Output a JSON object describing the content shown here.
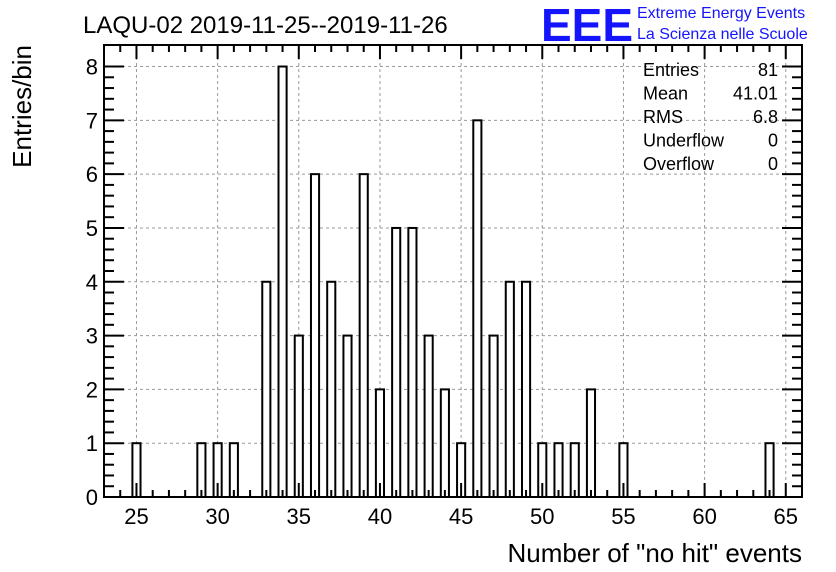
{
  "logo": {
    "mark": "EEE",
    "line1": "Extreme Energy Events",
    "line2": "La Scienza nelle Scuole",
    "color": "#1414ff"
  },
  "chart_data": {
    "type": "bar",
    "title": "LAQU-02 2019-11-25--2019-11-26",
    "xlabel": "Number of \"no hit\" events",
    "ylabel": "Entries/bin",
    "xlim": [
      23,
      66
    ],
    "ylim": [
      0,
      8.4
    ],
    "bin_width": 0.5,
    "x_ticks": [
      25,
      30,
      35,
      40,
      45,
      50,
      55,
      60,
      65
    ],
    "y_ticks": [
      0,
      1,
      2,
      3,
      4,
      5,
      6,
      7,
      8
    ],
    "grid": true,
    "bins": [
      {
        "x": 25,
        "value": 1
      },
      {
        "x": 29,
        "value": 1
      },
      {
        "x": 30,
        "value": 1
      },
      {
        "x": 31,
        "value": 1
      },
      {
        "x": 33,
        "value": 4
      },
      {
        "x": 34,
        "value": 8
      },
      {
        "x": 35,
        "value": 3
      },
      {
        "x": 36,
        "value": 6
      },
      {
        "x": 37,
        "value": 4
      },
      {
        "x": 38,
        "value": 3
      },
      {
        "x": 39,
        "value": 6
      },
      {
        "x": 40,
        "value": 2
      },
      {
        "x": 41,
        "value": 5
      },
      {
        "x": 42,
        "value": 5
      },
      {
        "x": 43,
        "value": 3
      },
      {
        "x": 44,
        "value": 2
      },
      {
        "x": 45,
        "value": 1
      },
      {
        "x": 46,
        "value": 7
      },
      {
        "x": 47,
        "value": 3
      },
      {
        "x": 48,
        "value": 4
      },
      {
        "x": 49,
        "value": 4
      },
      {
        "x": 50,
        "value": 1
      },
      {
        "x": 51,
        "value": 1
      },
      {
        "x": 52,
        "value": 1
      },
      {
        "x": 53,
        "value": 2
      },
      {
        "x": 55,
        "value": 1
      },
      {
        "x": 64,
        "value": 1
      }
    ],
    "stats": [
      {
        "label": "Entries",
        "value": "81"
      },
      {
        "label": "Mean",
        "value": "41.01"
      },
      {
        "label": "RMS",
        "value": "6.8"
      },
      {
        "label": "Underflow",
        "value": "0"
      },
      {
        "label": "Overflow",
        "value": "0"
      }
    ]
  }
}
